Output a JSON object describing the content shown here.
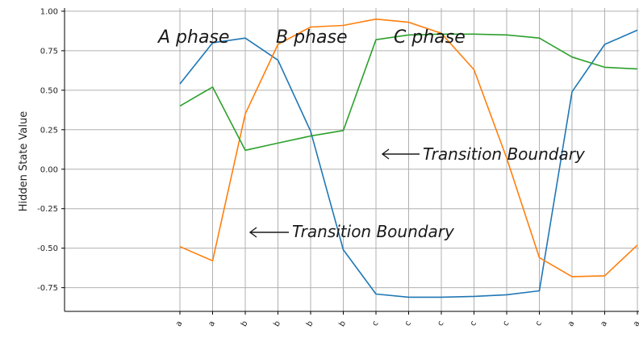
{
  "chart_data": {
    "type": "line",
    "title": "",
    "xlabel": "",
    "ylabel": "Hidden State Value",
    "ylim": [
      -0.9,
      1.02
    ],
    "yticks": [
      1.0,
      0.75,
      0.5,
      0.25,
      0.0,
      -0.25,
      -0.5,
      -0.75
    ],
    "ytick_labels": [
      "1.00",
      "0.75",
      "0.50",
      "0.25",
      "0.00",
      "-0.25",
      "-0.50",
      "-0.75"
    ],
    "categories": [
      "a",
      "a",
      "b",
      "b",
      "b",
      "b",
      "c",
      "c",
      "c",
      "c",
      "c",
      "c",
      "a",
      "a",
      "a"
    ],
    "grid": true,
    "series": [
      {
        "color": "#1f77b4",
        "values": [
          0.54,
          0.8,
          0.83,
          0.69,
          0.24,
          -0.51,
          -0.79,
          -0.81,
          -0.81,
          -0.805,
          -0.795,
          -0.77,
          0.49,
          0.79,
          0.88
        ]
      },
      {
        "color": "#ff7f0e",
        "values": [
          -0.49,
          -0.58,
          0.35,
          0.79,
          0.9,
          0.91,
          0.95,
          0.93,
          0.86,
          0.63,
          0.07,
          -0.56,
          -0.68,
          -0.675,
          -0.48
        ]
      },
      {
        "color": "#2ca02c",
        "values": [
          0.4,
          0.52,
          0.12,
          0.165,
          0.21,
          0.245,
          0.82,
          0.85,
          0.855,
          0.855,
          0.85,
          0.83,
          0.71,
          0.645,
          0.635
        ]
      }
    ],
    "annotations": [
      {
        "text": "A phase"
      },
      {
        "text": "B phase"
      },
      {
        "text": "C phase"
      },
      {
        "text": "Transition Boundary",
        "arrow": "left"
      },
      {
        "text": "Transition Boundary",
        "arrow": "left"
      }
    ]
  }
}
